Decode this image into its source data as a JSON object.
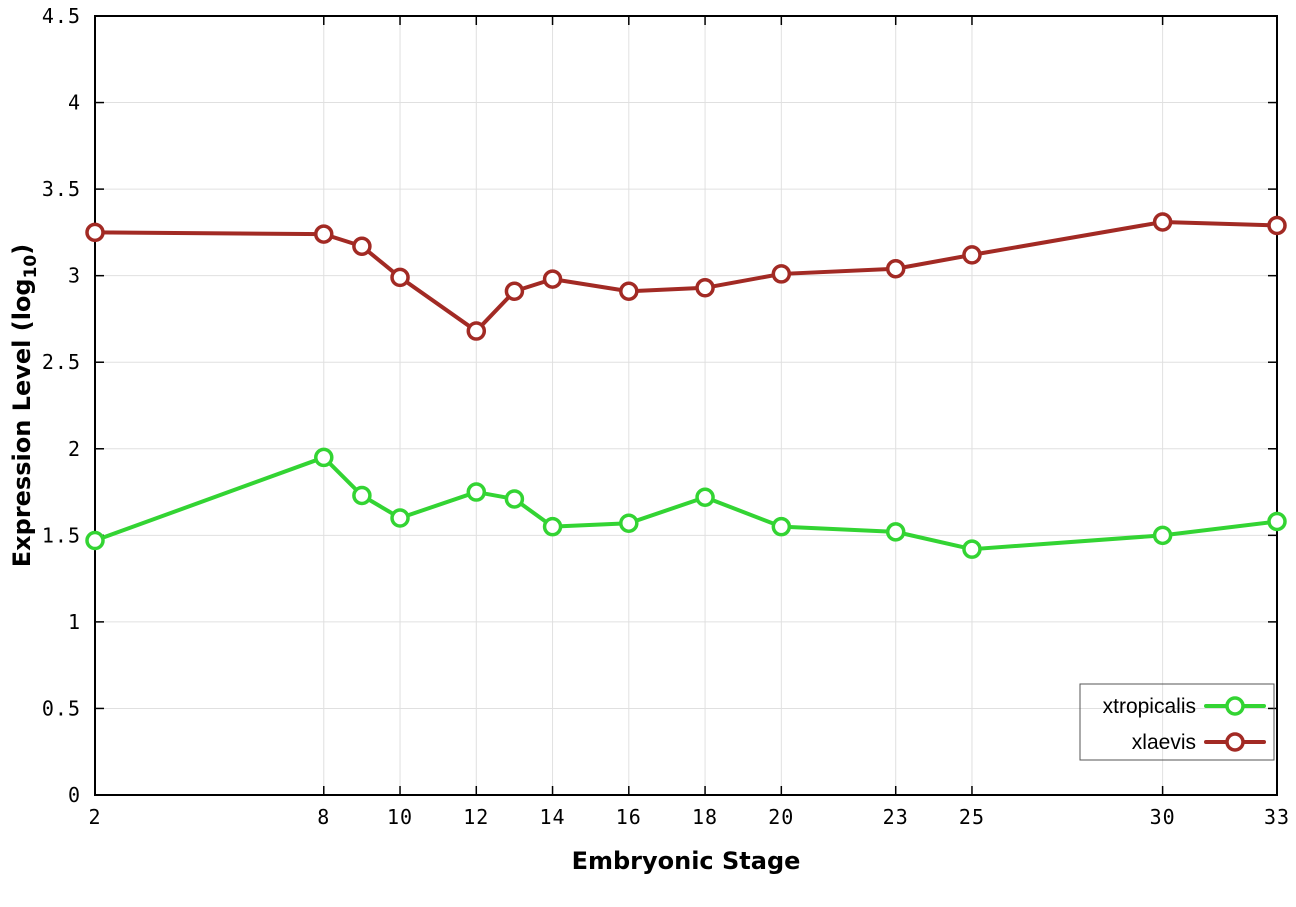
{
  "chart_data": {
    "type": "line",
    "title": "",
    "xlabel": "Embryonic Stage",
    "ylabel": "Expression Level (log10)",
    "ylabel_main": "Expression Level (log",
    "ylabel_sub": "10",
    "ylabel_close": ")",
    "xlim": [
      2,
      33
    ],
    "ylim": [
      0,
      4.5
    ],
    "x_ticks": [
      2,
      8,
      10,
      12,
      14,
      16,
      18,
      20,
      23,
      25,
      30,
      33
    ],
    "y_ticks": [
      0,
      0.5,
      1,
      1.5,
      2,
      2.5,
      3,
      3.5,
      4,
      4.5
    ],
    "grid": true,
    "legend_position": "bottom-right",
    "series": [
      {
        "name": "xtropicalis",
        "color": "#33d433",
        "marker": "open-circle",
        "x": [
          2,
          8,
          9,
          10,
          12,
          13,
          14,
          16,
          18,
          20,
          23,
          25,
          30,
          33
        ],
        "y": [
          1.47,
          1.95,
          1.73,
          1.6,
          1.75,
          1.71,
          1.55,
          1.57,
          1.72,
          1.55,
          1.52,
          1.42,
          1.5,
          1.58
        ]
      },
      {
        "name": "xlaevis",
        "color": "#a22a24",
        "marker": "open-circle",
        "x": [
          2,
          8,
          9,
          10,
          12,
          13,
          14,
          16,
          18,
          20,
          23,
          25,
          30,
          33
        ],
        "y": [
          3.25,
          3.24,
          3.17,
          2.99,
          2.68,
          2.91,
          2.98,
          2.91,
          2.93,
          3.01,
          3.04,
          3.12,
          3.31,
          3.29
        ]
      }
    ]
  }
}
